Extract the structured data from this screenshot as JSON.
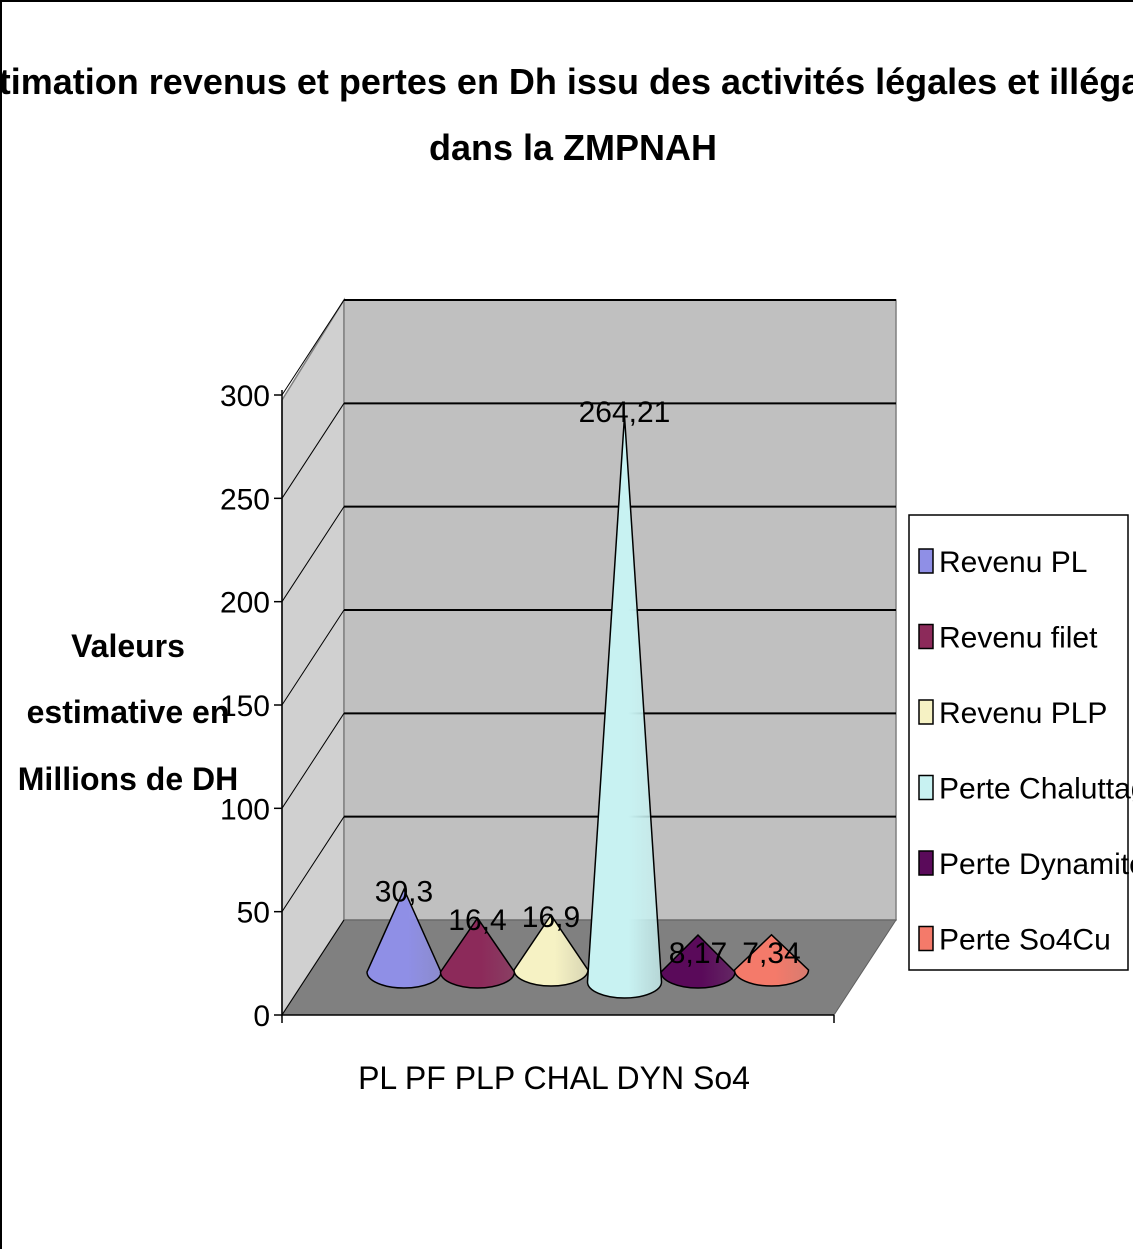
{
  "chart_data": {
    "type": "bar",
    "shape": "cone-3d",
    "title_line1": "Estimation revenus et pertes en Dh issu des activités légales et illégales",
    "title_line2": "dans la ZMPNAH",
    "ylabel_lines": [
      "Valeurs",
      "estimative en",
      "Millions de DH"
    ],
    "xlabel": "PL PF PLP CHAL DYN So4",
    "ylim": [
      0,
      300
    ],
    "yticks": [
      "0",
      "50",
      "100",
      "150",
      "200",
      "250",
      "300"
    ],
    "grid": true,
    "legend_position": "right",
    "series": [
      {
        "name": "Revenu PL",
        "value": 30.3,
        "label": "30,3",
        "color": "#8f8fe6"
      },
      {
        "name": "Revenu filet",
        "value": 16.4,
        "label": "16,4",
        "color": "#8c2a5a"
      },
      {
        "name": "Revenu PLP",
        "value": 16.9,
        "label": "16,9",
        "color": "#f6f2c4"
      },
      {
        "name": "Perte Chaluttage",
        "value": 264.21,
        "label": "264,21",
        "color": "#c8f2f2"
      },
      {
        "name": "Perte Dynamite",
        "value": 8.17,
        "label": "8,17",
        "color": "#5a0a5a"
      },
      {
        "name": "Perte So4Cu",
        "value": 7.34,
        "label": "7,34",
        "color": "#f47a6a"
      }
    ]
  }
}
